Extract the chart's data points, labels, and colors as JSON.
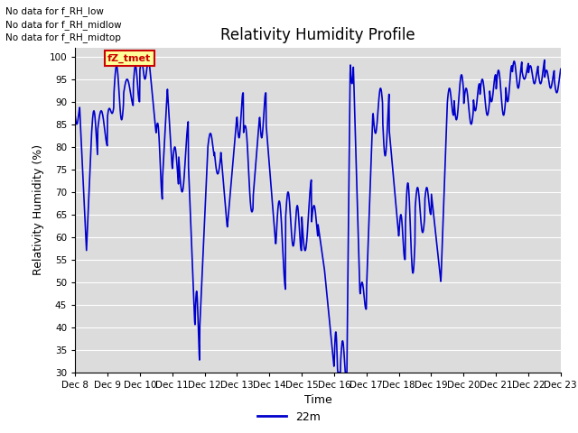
{
  "title": "Relativity Humidity Profile",
  "xlabel": "Time",
  "ylabel": "Relativity Humidity (%)",
  "ylim": [
    30,
    102
  ],
  "yticks": [
    30,
    35,
    40,
    45,
    50,
    55,
    60,
    65,
    70,
    75,
    80,
    85,
    90,
    95,
    100
  ],
  "line_color": "#0000CC",
  "line_width": 1.2,
  "bg_color": "#DCDCDC",
  "legend_label": "22m",
  "no_data_texts": [
    "No data for f_RH_low",
    "No data for f_RH_midlow",
    "No data for f_RH_midtop"
  ],
  "tooltip_text": "fZ_tmet",
  "tooltip_color": "#CC0000",
  "tooltip_bg": "#FFFF99",
  "xtick_days": [
    8,
    9,
    10,
    11,
    12,
    13,
    14,
    15,
    16,
    17,
    18,
    19,
    20,
    21,
    22,
    23
  ],
  "title_fontsize": 12,
  "axis_fontsize": 9,
  "tick_fontsize": 7.5
}
